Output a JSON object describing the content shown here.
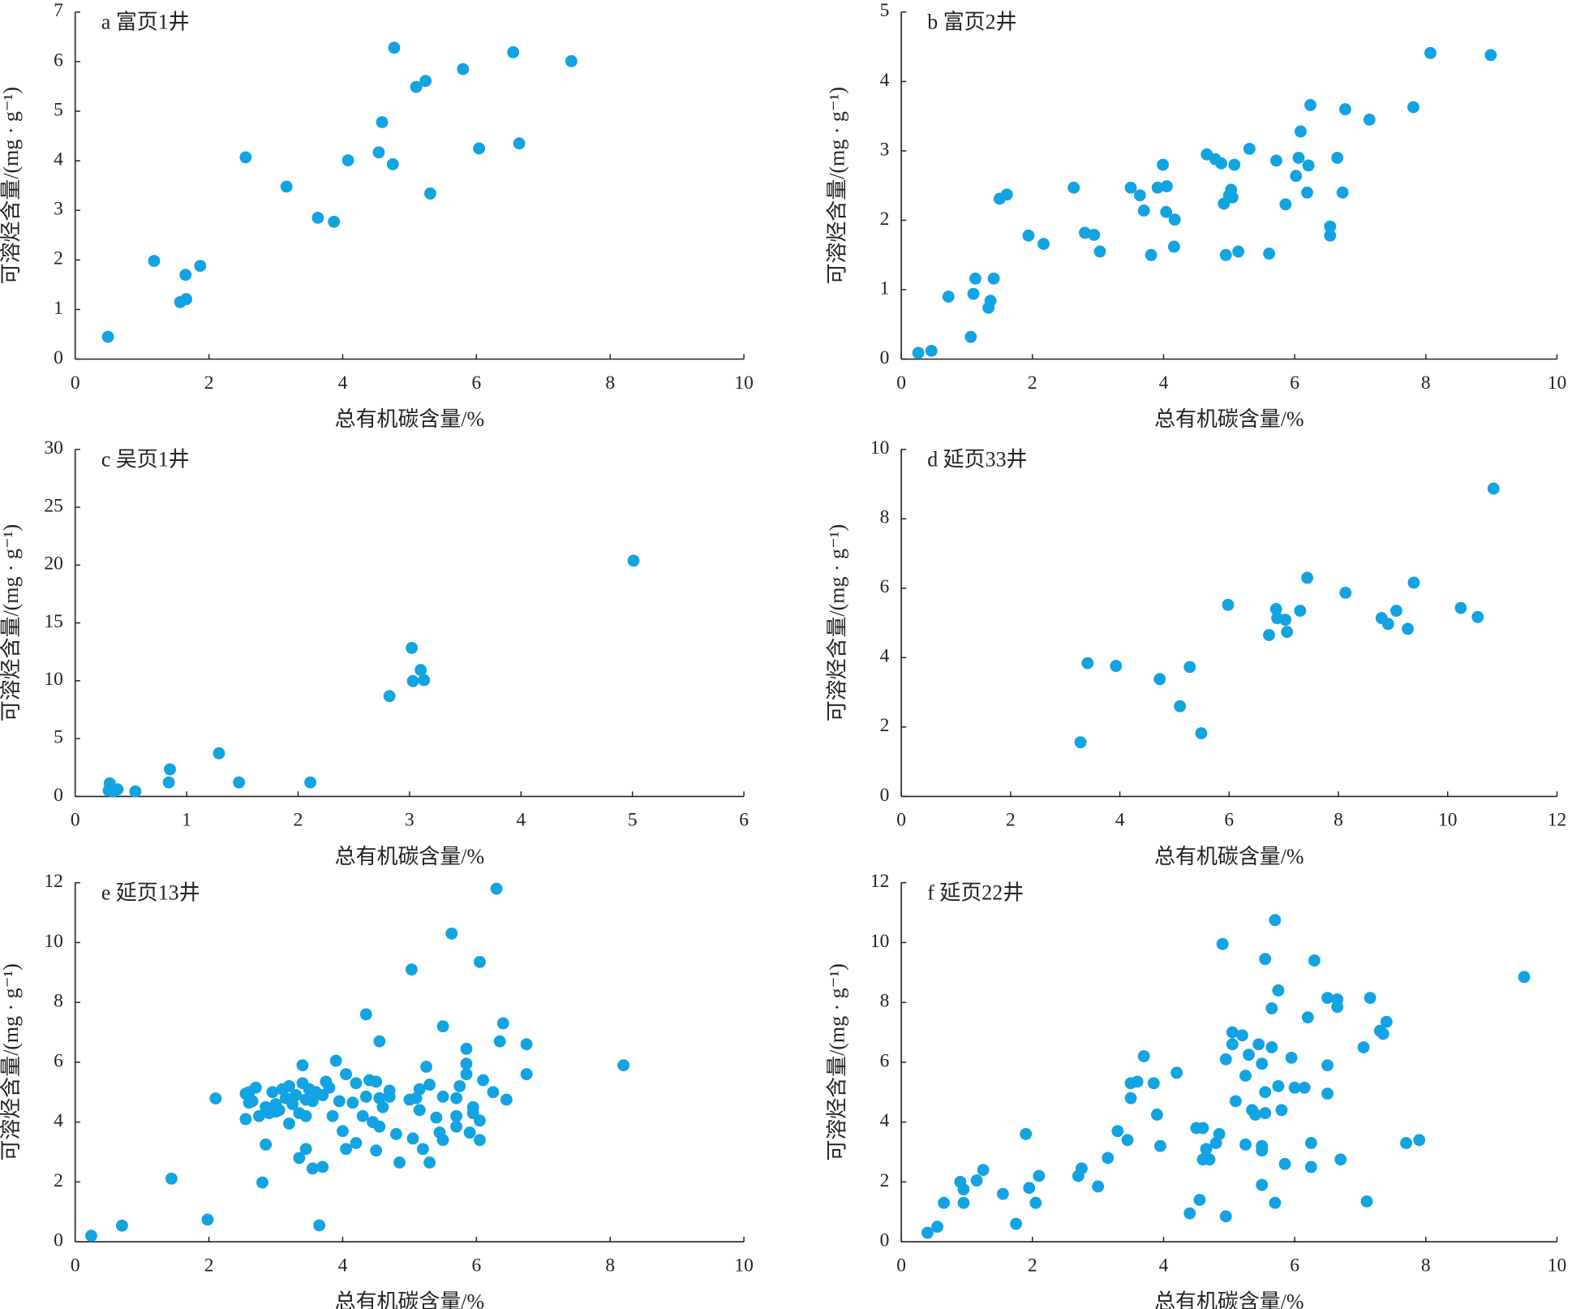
{
  "chart_data": [
    {
      "type": "scatter",
      "title": "a 富页1井",
      "x_label": "总有机碳含量/%",
      "y_label": "可溶烃含量/(mg · g⁻¹)",
      "color": "#12a3e3",
      "xlim": [
        0,
        10
      ],
      "xticks": [
        0,
        2,
        4,
        6,
        8,
        10
      ],
      "ylim": [
        0,
        7
      ],
      "yticks": [
        0,
        1,
        2,
        3,
        4,
        5,
        6,
        7
      ],
      "x": [
        0.49,
        1.18,
        1.65,
        1.57,
        1.66,
        1.87,
        2.55,
        3.16,
        3.63,
        3.87,
        4.08,
        4.54,
        4.59,
        4.75,
        4.77,
        5.1,
        5.24,
        5.31,
        5.8,
        6.04,
        6.55,
        6.64,
        7.42
      ],
      "values": [
        0.45,
        1.98,
        1.7,
        1.15,
        1.21,
        1.88,
        4.07,
        3.48,
        2.85,
        2.77,
        4.01,
        4.17,
        4.78,
        3.93,
        6.28,
        5.49,
        5.61,
        3.34,
        5.85,
        4.25,
        6.19,
        4.35,
        6.01
      ]
    },
    {
      "type": "scatter",
      "title": "b 富页2井",
      "x_label": "总有机碳含量/%",
      "y_label": "可溶烃含量/(mg · g⁻¹)",
      "color": "#12a3e3",
      "xlim": [
        0,
        10
      ],
      "xticks": [
        0,
        2,
        4,
        6,
        8,
        10
      ],
      "ylim": [
        0,
        5
      ],
      "yticks": [
        0,
        1,
        2,
        3,
        4,
        5
      ],
      "x": [
        0.26,
        0.46,
        0.72,
        1.06,
        1.1,
        1.13,
        1.33,
        1.36,
        1.41,
        1.5,
        1.61,
        1.94,
        2.17,
        2.63,
        2.8,
        2.94,
        3.03,
        3.5,
        3.64,
        3.7,
        3.81,
        3.91,
        3.99,
        4.05,
        4.04,
        4.16,
        4.17,
        4.66,
        4.79,
        4.88,
        4.92,
        4.95,
        5.0,
        5.05,
        5.03,
        5.08,
        5.14,
        5.31,
        5.61,
        5.72,
        5.86,
        6.02,
        6.06,
        6.09,
        6.19,
        6.21,
        6.24,
        6.54,
        6.54,
        6.65,
        6.73,
        6.77,
        7.14,
        7.81,
        8.07,
        8.99
      ],
      "values": [
        0.09,
        0.12,
        0.9,
        0.32,
        0.94,
        1.16,
        0.74,
        0.84,
        1.16,
        2.31,
        2.37,
        1.78,
        1.66,
        2.47,
        1.82,
        1.79,
        1.55,
        2.47,
        2.36,
        2.14,
        1.5,
        2.47,
        2.8,
        2.49,
        2.12,
        1.62,
        2.01,
        2.95,
        2.88,
        2.82,
        2.24,
        1.5,
        2.36,
        2.33,
        2.44,
        2.8,
        1.55,
        3.03,
        1.52,
        2.86,
        2.23,
        2.64,
        2.9,
        3.28,
        2.4,
        2.79,
        3.66,
        1.91,
        1.78,
        2.9,
        2.4,
        3.6,
        3.45,
        3.63,
        4.41,
        4.38
      ]
    },
    {
      "type": "scatter",
      "title": "c 吴页1井",
      "x_label": "总有机碳含量/%",
      "y_label": "可溶烃含量/(mg · g⁻¹)",
      "color": "#12a3e3",
      "xlim": [
        0,
        6
      ],
      "xticks": [
        0,
        1,
        2,
        3,
        4,
        5,
        6
      ],
      "ylim": [
        0,
        30
      ],
      "yticks": [
        0,
        5,
        10,
        15,
        20,
        25,
        30
      ],
      "x": [
        0.31,
        0.3,
        0.34,
        0.38,
        0.54,
        0.84,
        0.85,
        1.29,
        1.47,
        2.11,
        2.82,
        3.02,
        3.03,
        3.1,
        3.13,
        5.01
      ],
      "values": [
        1.13,
        0.52,
        0.43,
        0.61,
        0.43,
        1.21,
        2.34,
        3.73,
        1.21,
        1.21,
        8.67,
        12.84,
        9.97,
        10.93,
        10.06,
        20.38
      ]
    },
    {
      "type": "scatter",
      "title": "d 延页33井",
      "x_label": "总有机碳含量/%",
      "y_label": "可溶烃含量/(mg · g⁻¹)",
      "color": "#12a3e3",
      "xlim": [
        0,
        12
      ],
      "xticks": [
        0,
        2,
        4,
        6,
        8,
        10,
        12
      ],
      "ylim": [
        0,
        10
      ],
      "yticks": [
        0,
        2,
        4,
        6,
        8,
        10
      ],
      "x": [
        3.28,
        3.41,
        3.93,
        4.73,
        5.1,
        5.28,
        5.49,
        5.98,
        6.73,
        6.86,
        6.88,
        7.03,
        7.06,
        7.3,
        7.43,
        8.13,
        8.79,
        8.91,
        9.06,
        9.27,
        9.38,
        10.24,
        10.55,
        10.84
      ],
      "values": [
        1.56,
        3.84,
        3.76,
        3.38,
        2.6,
        3.73,
        1.82,
        5.52,
        4.65,
        5.4,
        5.14,
        5.09,
        4.74,
        5.35,
        6.3,
        5.87,
        5.14,
        4.97,
        5.35,
        4.83,
        6.16,
        5.43,
        5.17,
        8.87
      ]
    },
    {
      "type": "scatter",
      "title": "e 延页13井",
      "x_label": "总有机碳含量/%",
      "y_label": "可溶烃含量/(mg · g⁻¹)",
      "color": "#12a3e3",
      "xlim": [
        0,
        10
      ],
      "xticks": [
        0,
        2,
        4,
        6,
        8,
        10
      ],
      "ylim": [
        0,
        12
      ],
      "yticks": [
        0,
        2,
        4,
        6,
        8,
        10,
        12
      ],
      "x": [
        0.24,
        0.7,
        1.44,
        1.98,
        2.1,
        2.55,
        2.6,
        2.65,
        2.7,
        2.75,
        2.85,
        2.9,
        2.95,
        3.0,
        3.05,
        3.1,
        3.15,
        3.2,
        3.25,
        3.3,
        3.35,
        3.4,
        3.4,
        3.45,
        3.5,
        3.55,
        3.6,
        3.7,
        3.75,
        3.8,
        3.9,
        3.95,
        4.0,
        4.05,
        4.15,
        4.2,
        4.3,
        4.35,
        4.4,
        4.45,
        4.5,
        4.55,
        4.55,
        4.6,
        4.7,
        4.8,
        4.85,
        5.0,
        5.05,
        5.1,
        5.15,
        5.2,
        5.25,
        5.3,
        5.3,
        5.4,
        5.45,
        5.5,
        5.5,
        5.7,
        5.75,
        5.7,
        5.85,
        5.85,
        5.95,
        5.95,
        6.05,
        6.05,
        6.1,
        6.25,
        6.35,
        6.45,
        6.75,
        6.4,
        6.75,
        5.5,
        4.35,
        4.55,
        5.03,
        5.63,
        6.05,
        6.3,
        8.2,
        2.85,
        2.8,
        3.35,
        3.45,
        3.55,
        3.7,
        3.65,
        3.85,
        4.05,
        4.2,
        4.5,
        3.2,
        3.45,
        3.0,
        2.6,
        2.55,
        5.7,
        5.9,
        4.7,
        5.85,
        5.15
      ],
      "values": [
        0.2,
        0.54,
        2.11,
        0.74,
        4.79,
        4.1,
        5.0,
        4.7,
        5.15,
        4.2,
        4.5,
        4.3,
        5.0,
        4.6,
        4.4,
        5.1,
        4.8,
        5.2,
        4.6,
        4.9,
        4.3,
        5.3,
        5.9,
        4.2,
        5.1,
        4.7,
        5.0,
        4.9,
        5.35,
        5.15,
        6.05,
        4.7,
        3.7,
        5.6,
        4.65,
        5.3,
        4.2,
        4.85,
        5.4,
        4.0,
        5.35,
        4.8,
        3.85,
        4.5,
        5.05,
        3.6,
        2.65,
        4.75,
        3.45,
        4.8,
        5.1,
        3.1,
        5.85,
        5.25,
        2.65,
        4.15,
        3.65,
        3.4,
        4.85,
        4.8,
        5.2,
        4.2,
        5.95,
        5.6,
        4.5,
        4.3,
        4.05,
        3.4,
        5.4,
        5.0,
        6.7,
        4.75,
        5.6,
        7.3,
        6.6,
        7.2,
        7.6,
        6.7,
        9.1,
        10.3,
        9.35,
        11.8,
        5.9,
        3.25,
        1.98,
        2.8,
        3.1,
        2.45,
        2.5,
        0.55,
        4.2,
        3.1,
        3.3,
        3.05,
        3.95,
        4.75,
        4.35,
        4.65,
        4.95,
        3.85,
        3.65,
        4.85,
        6.45,
        4.4
      ]
    },
    {
      "type": "scatter",
      "title": "f 延页22井",
      "x_label": "总有机碳含量/%",
      "y_label": "可溶烃含量/(mg · g⁻¹)",
      "color": "#12a3e3",
      "xlim": [
        0,
        10
      ],
      "xticks": [
        0,
        2,
        4,
        6,
        8,
        10
      ],
      "ylim": [
        0,
        12
      ],
      "yticks": [
        0,
        2,
        4,
        6,
        8,
        10,
        12
      ],
      "x": [
        0.4,
        0.55,
        0.65,
        0.9,
        0.95,
        0.95,
        1.15,
        1.25,
        1.55,
        1.75,
        1.9,
        1.95,
        2.05,
        2.1,
        2.7,
        2.75,
        3.0,
        3.15,
        3.3,
        3.45,
        3.5,
        3.5,
        3.6,
        3.7,
        3.85,
        3.9,
        3.95,
        4.2,
        4.4,
        4.5,
        4.55,
        4.6,
        4.6,
        4.65,
        4.7,
        4.8,
        4.85,
        4.9,
        4.95,
        4.95,
        5.05,
        5.05,
        5.1,
        5.2,
        5.25,
        5.25,
        5.3,
        5.35,
        5.4,
        5.45,
        5.5,
        5.5,
        5.5,
        5.55,
        5.55,
        5.55,
        5.5,
        5.65,
        5.65,
        5.7,
        5.7,
        5.75,
        5.75,
        5.8,
        5.85,
        5.95,
        6.0,
        6.15,
        6.2,
        6.25,
        6.25,
        6.3,
        6.5,
        6.5,
        6.5,
        6.65,
        6.65,
        6.7,
        7.05,
        7.1,
        7.15,
        7.3,
        7.35,
        7.4,
        7.7,
        7.9,
        9.5
      ],
      "values": [
        0.3,
        0.5,
        1.3,
        2.0,
        1.3,
        1.75,
        2.05,
        2.4,
        1.6,
        0.6,
        3.6,
        1.8,
        1.3,
        2.2,
        2.2,
        2.45,
        1.85,
        2.8,
        3.7,
        3.4,
        4.8,
        5.3,
        5.35,
        6.2,
        5.3,
        4.25,
        3.2,
        5.65,
        0.95,
        3.8,
        1.4,
        2.75,
        3.8,
        3.1,
        2.75,
        3.3,
        3.6,
        9.95,
        6.1,
        0.85,
        7.0,
        6.6,
        4.7,
        6.9,
        3.25,
        5.55,
        6.25,
        4.4,
        4.25,
        6.6,
        5.95,
        3.2,
        3.05,
        9.45,
        5.0,
        4.3,
        1.9,
        7.8,
        6.5,
        10.75,
        1.3,
        8.4,
        5.2,
        4.4,
        2.6,
        6.15,
        5.15,
        5.15,
        7.5,
        3.3,
        2.5,
        9.4,
        4.95,
        5.9,
        8.15,
        8.1,
        7.85,
        2.75,
        6.5,
        1.35,
        8.15,
        7.05,
        6.95,
        7.35,
        3.3,
        3.4,
        8.85
      ]
    }
  ]
}
